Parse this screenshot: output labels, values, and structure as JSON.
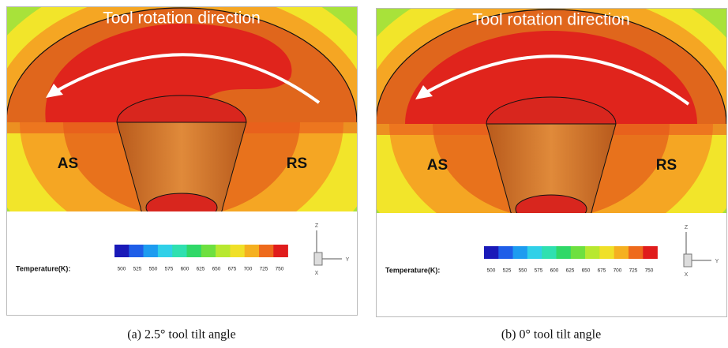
{
  "panels": [
    {
      "overlay_title": "Tool rotation direction",
      "left_label": "AS",
      "right_label": "RS",
      "legend_title": "Temperature(K):",
      "legend_ticks": [
        500,
        525,
        550,
        575,
        600,
        625,
        650,
        675,
        700,
        725,
        750
      ],
      "axes": {
        "z": "Z",
        "y": "Y",
        "x": "X"
      },
      "caption": "(a) 2.5° tool tilt angle"
    },
    {
      "overlay_title": "Tool rotation direction",
      "left_label": "AS",
      "right_label": "RS",
      "legend_title": "Temperature(K):",
      "legend_ticks": [
        500,
        525,
        550,
        575,
        600,
        625,
        650,
        675,
        700,
        725,
        750
      ],
      "axes": {
        "z": "Z",
        "y": "Y",
        "x": "X"
      },
      "caption": "(b) 0° tool tilt angle"
    }
  ]
}
